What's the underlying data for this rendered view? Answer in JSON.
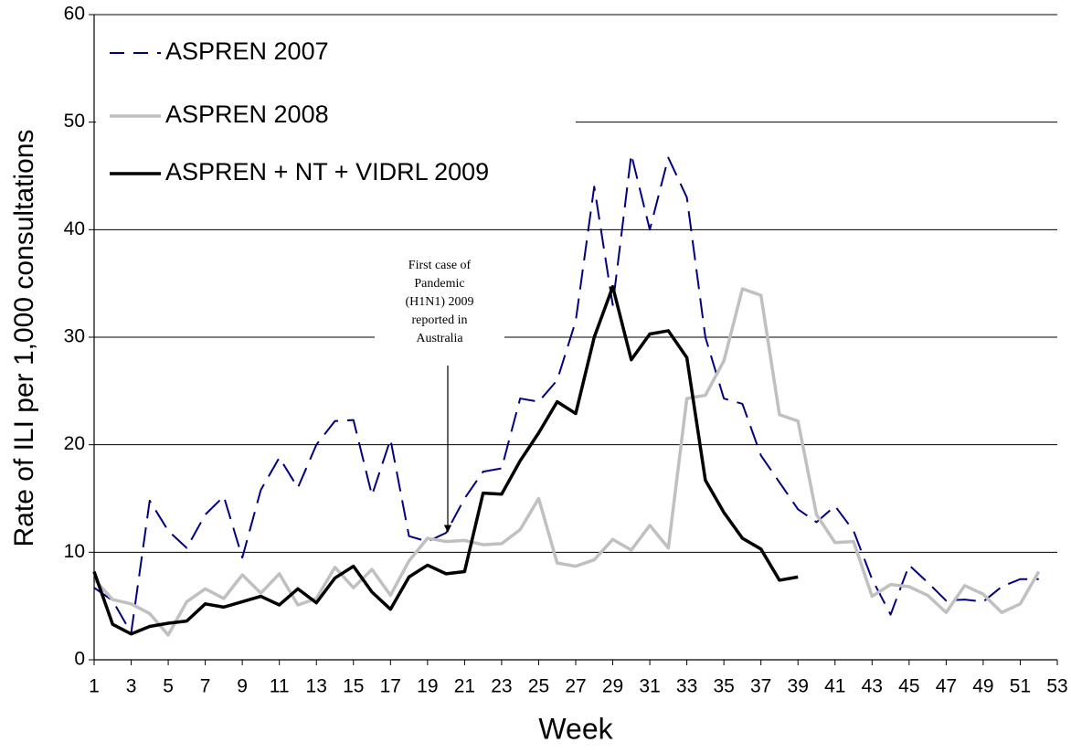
{
  "chart_data": {
    "type": "line",
    "x_label": "Week",
    "y_label": "Rate of ILI per 1,000 consultations",
    "x": [
      1,
      2,
      3,
      4,
      5,
      6,
      7,
      8,
      9,
      10,
      11,
      12,
      13,
      14,
      15,
      16,
      17,
      18,
      19,
      20,
      21,
      22,
      23,
      24,
      25,
      26,
      27,
      28,
      29,
      30,
      31,
      32,
      33,
      34,
      35,
      36,
      37,
      38,
      39,
      40,
      41,
      42,
      43,
      44,
      45,
      46,
      47,
      48,
      49,
      50,
      51,
      52
    ],
    "xlim": [
      1,
      53
    ],
    "xticks": [
      1,
      3,
      5,
      7,
      9,
      11,
      13,
      15,
      17,
      19,
      21,
      23,
      25,
      27,
      29,
      31,
      33,
      35,
      37,
      39,
      41,
      43,
      45,
      47,
      49,
      51,
      53
    ],
    "ylim": [
      0,
      60
    ],
    "yticks": [
      0,
      10,
      20,
      30,
      40,
      50,
      60
    ],
    "grid": true,
    "legend": "top-left",
    "annotation": [
      "First case of",
      "Pandemic",
      "(H1N1) 2009",
      "reported in",
      "Australia"
    ],
    "series": [
      {
        "name": "ASPREN 2007",
        "color": "#000080",
        "line_style": "dashed",
        "values": [
          6.7,
          5.5,
          2.5,
          14.8,
          12,
          10.4,
          13.5,
          15.2,
          9.5,
          15.8,
          18.8,
          16,
          20,
          22.2,
          22.3,
          15.3,
          20.5,
          11.5,
          11,
          11.8,
          15,
          17.5,
          17.8,
          24.3,
          24,
          26,
          31.5,
          44,
          33,
          47,
          40,
          46.7,
          43,
          30,
          24.3,
          23.8,
          19,
          16.5,
          14,
          12.8,
          14.3,
          12,
          7.5,
          4.2,
          8.8,
          7.2,
          5.5,
          5.6,
          5.4,
          6.8,
          7.5,
          7.5
        ]
      },
      {
        "name": "ASPREN 2008",
        "color": "#c0c0c0",
        "line_style": "solid",
        "values": [
          7.5,
          5.6,
          5.2,
          4.3,
          2.3,
          5.4,
          6.6,
          5.7,
          7.9,
          6.2,
          8,
          5.1,
          5.7,
          8.6,
          6.7,
          8.4,
          6,
          9.2,
          11.3,
          11,
          11.1,
          10.7,
          10.8,
          12.1,
          15,
          9,
          8.7,
          9.3,
          11.2,
          10.2,
          12.5,
          10.4,
          24.3,
          24.6,
          27.8,
          34.5,
          33.9,
          22.8,
          22.2,
          13.5,
          10.9,
          11,
          5.9,
          7,
          6.8,
          6,
          4.4,
          6.9,
          6.1,
          4.4,
          5.2,
          8.2
        ]
      },
      {
        "name": "ASPREN + NT + VIDRL 2009",
        "color": "#000000",
        "line_style": "solid",
        "values": [
          8.2,
          3.3,
          2.4,
          3.1,
          3.4,
          3.6,
          5.2,
          4.9,
          5.4,
          5.9,
          5.1,
          6.6,
          5.3,
          7.6,
          8.7,
          6.3,
          4.7,
          7.7,
          8.8,
          8,
          8.2,
          15.5,
          15.4,
          18.5,
          21.1,
          24,
          22.9,
          30,
          34.7,
          27.9,
          30.3,
          30.6,
          28.1,
          16.7,
          13.7,
          11.3,
          10.3,
          7.4,
          7.7,
          null,
          null,
          null,
          null,
          null,
          null,
          null,
          null,
          null,
          null,
          null,
          null,
          null
        ]
      }
    ]
  }
}
